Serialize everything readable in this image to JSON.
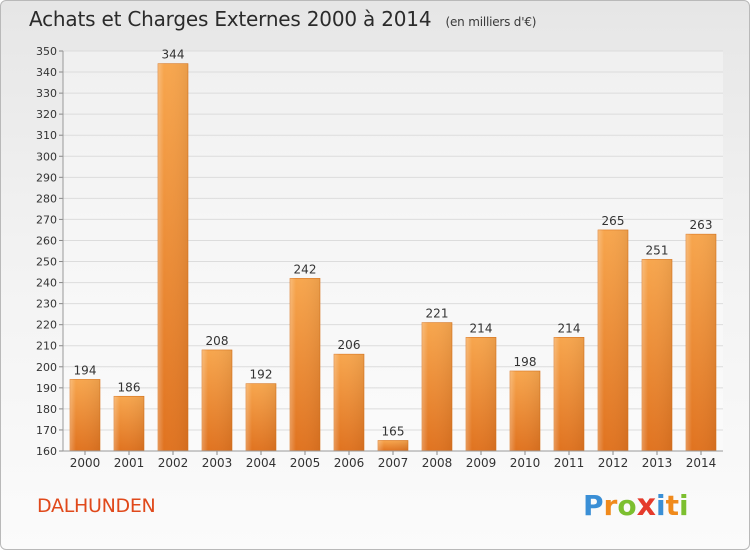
{
  "header": {
    "title": "Achats et Charges Externes 2000 à 2014",
    "unit": "(en milliers d'€)"
  },
  "footer": {
    "commune": "DALHUNDEN",
    "logo_letters": [
      "P",
      "r",
      "o",
      "x",
      "i",
      "t",
      "i"
    ],
    "logo_colors": [
      "#3a8fd6",
      "#f08a1c",
      "#7cbf2f",
      "#e53a2b",
      "#3a8fd6",
      "#f08a1c",
      "#7cbf2f"
    ]
  },
  "chart_data": {
    "type": "bar",
    "categories": [
      "2000",
      "2001",
      "2002",
      "2003",
      "2004",
      "2005",
      "2006",
      "2007",
      "2008",
      "2009",
      "2010",
      "2011",
      "2012",
      "2013",
      "2014"
    ],
    "values": [
      194,
      186,
      344,
      208,
      192,
      242,
      206,
      165,
      221,
      214,
      198,
      214,
      265,
      251,
      263
    ],
    "title": "Achats et Charges Externes 2000 à 2014",
    "ylim": [
      160,
      350
    ],
    "yticks": [
      160,
      170,
      180,
      190,
      200,
      210,
      220,
      230,
      240,
      250,
      260,
      270,
      280,
      290,
      300,
      310,
      320,
      330,
      340,
      350
    ],
    "grid": true,
    "bar_color": "#f0922f",
    "grid_color": "#dcdcdc"
  }
}
